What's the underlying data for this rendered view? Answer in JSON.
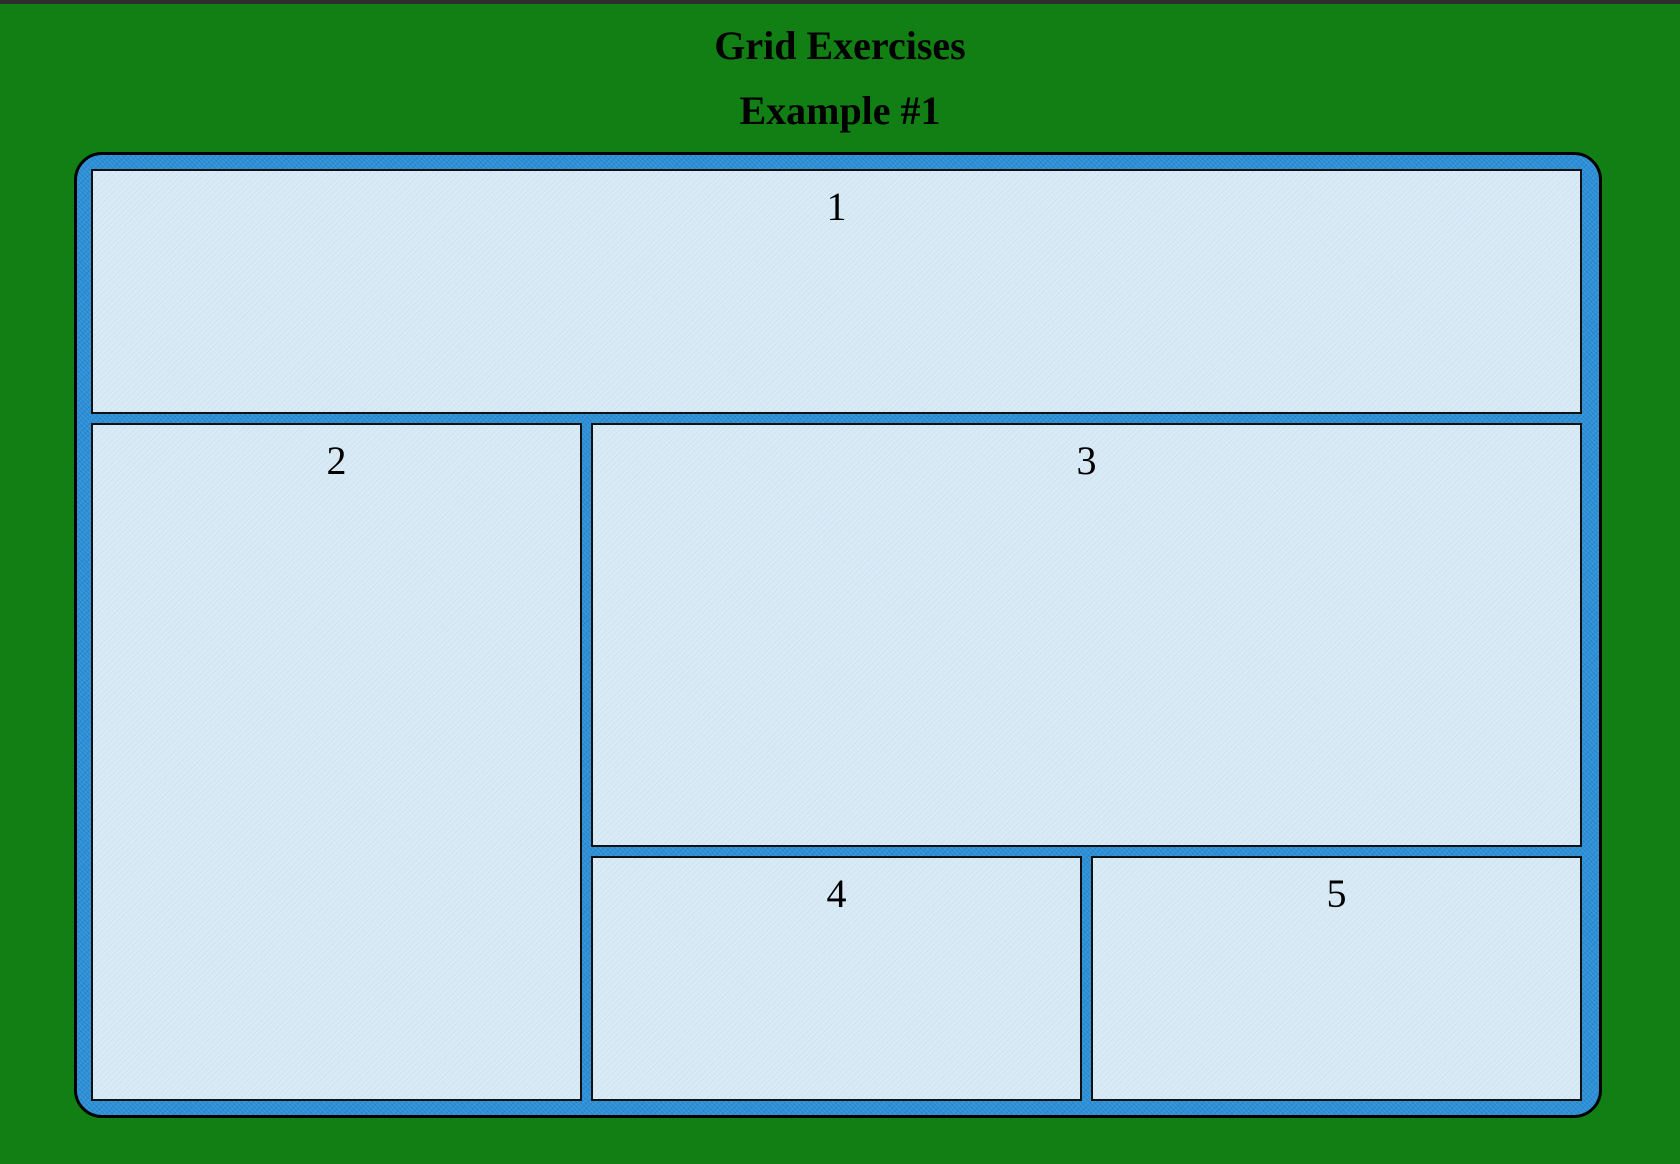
{
  "page": {
    "title": "Grid Exercises",
    "subtitle": "Example #1"
  },
  "grid": {
    "cells": [
      {
        "label": "1"
      },
      {
        "label": "2"
      },
      {
        "label": "3"
      },
      {
        "label": "4"
      },
      {
        "label": "5"
      }
    ]
  },
  "colors": {
    "page_background": "#117f13",
    "grid_background": "#2a8fd6",
    "cell_background": "#d6e9f5",
    "border": "#000000"
  }
}
